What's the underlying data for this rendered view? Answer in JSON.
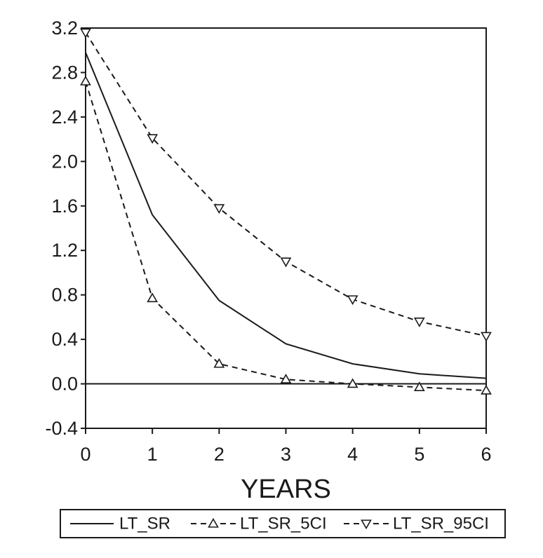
{
  "chart_data": {
    "type": "line",
    "title": "",
    "xlabel": "YEARS",
    "ylabel": "",
    "xlim": [
      0,
      6
    ],
    "ylim": [
      -0.4,
      3.2
    ],
    "x_ticks": [
      0,
      1,
      2,
      3,
      4,
      5,
      6
    ],
    "y_ticks": [
      -0.4,
      0.0,
      0.4,
      0.8,
      1.2,
      1.6,
      2.0,
      2.4,
      2.8,
      3.2
    ],
    "y_tick_labels": [
      "-0.4",
      "0.0",
      "0.4",
      "0.8",
      "1.2",
      "1.6",
      "2.0",
      "2.4",
      "2.8",
      "3.2"
    ],
    "x_tick_labels": [
      "0",
      "1",
      "2",
      "3",
      "4",
      "5",
      "6"
    ],
    "grid": false,
    "zero_line": true,
    "legend_position": "bottom",
    "x": [
      0,
      1,
      2,
      3,
      4,
      5,
      6
    ],
    "series": [
      {
        "name": "LT_SR",
        "values": [
          2.98,
          1.52,
          0.75,
          0.36,
          0.18,
          0.09,
          0.05
        ],
        "line_style": "solid",
        "marker": "none",
        "color": "#1a1a1a"
      },
      {
        "name": "LT_SR_5CI",
        "values": [
          2.72,
          0.77,
          0.18,
          0.04,
          0.0,
          -0.03,
          -0.06
        ],
        "line_style": "dashed",
        "marker": "triangle-up",
        "color": "#1a1a1a"
      },
      {
        "name": "LT_SR_95CI",
        "values": [
          3.16,
          2.21,
          1.58,
          1.1,
          0.76,
          0.56,
          0.43
        ],
        "line_style": "dashed",
        "marker": "triangle-down",
        "color": "#1a1a1a"
      }
    ]
  }
}
